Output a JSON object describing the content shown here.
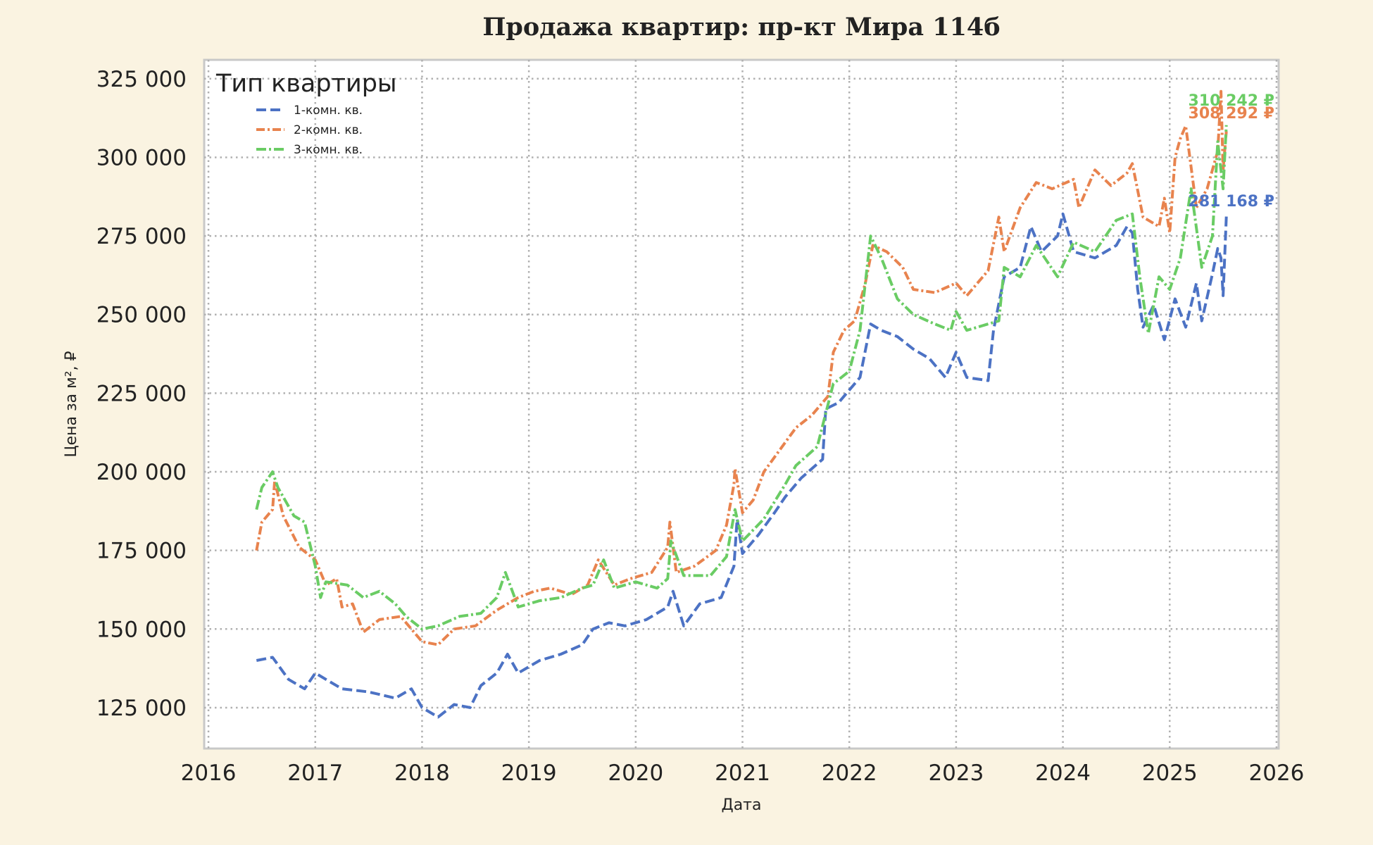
{
  "chart_data": {
    "type": "line",
    "title": "Продажа квартир: пр-кт Мира 114б",
    "xlabel": "Дата",
    "ylabel": "Цена за м², ₽",
    "xlim": [
      2015.96,
      2026.02
    ],
    "ylim": [
      112000,
      331000
    ],
    "x_ticks": [
      2016,
      2017,
      2018,
      2019,
      2020,
      2021,
      2022,
      2023,
      2024,
      2025,
      2026
    ],
    "x_tick_labels": [
      "2016",
      "2017",
      "2018",
      "2019",
      "2020",
      "2021",
      "2022",
      "2023",
      "2024",
      "2025",
      "2026"
    ],
    "y_ticks": [
      125000,
      150000,
      175000,
      200000,
      225000,
      250000,
      275000,
      300000,
      325000
    ],
    "y_tick_labels": [
      "125 000",
      "150 000",
      "175 000",
      "200 000",
      "225 000",
      "250 000",
      "275 000",
      "300 000",
      "325 000"
    ],
    "grid": true,
    "legend": {
      "title": "Тип квартиры",
      "position": "top-left"
    },
    "series": [
      {
        "name": "1-комн. кв.",
        "color": "#4c72c4",
        "dash": "dashed",
        "end_label": "281 168 ₽",
        "points": [
          [
            2016.45,
            140000
          ],
          [
            2016.6,
            141000
          ],
          [
            2016.75,
            134000
          ],
          [
            2016.9,
            131000
          ],
          [
            2017.0,
            136000
          ],
          [
            2017.1,
            134000
          ],
          [
            2017.25,
            131000
          ],
          [
            2017.5,
            130000
          ],
          [
            2017.75,
            128000
          ],
          [
            2017.9,
            131000
          ],
          [
            2018.0,
            125000
          ],
          [
            2018.15,
            122000
          ],
          [
            2018.3,
            126000
          ],
          [
            2018.45,
            125000
          ],
          [
            2018.55,
            132000
          ],
          [
            2018.7,
            136000
          ],
          [
            2018.8,
            142000
          ],
          [
            2018.9,
            136000
          ],
          [
            2019.1,
            140000
          ],
          [
            2019.3,
            142000
          ],
          [
            2019.5,
            145000
          ],
          [
            2019.6,
            150000
          ],
          [
            2019.75,
            152000
          ],
          [
            2019.9,
            151000
          ],
          [
            2020.1,
            153000
          ],
          [
            2020.3,
            157000
          ],
          [
            2020.35,
            162000
          ],
          [
            2020.45,
            151000
          ],
          [
            2020.6,
            158000
          ],
          [
            2020.8,
            160000
          ],
          [
            2020.92,
            170000
          ],
          [
            2020.95,
            185000
          ],
          [
            2021.0,
            174000
          ],
          [
            2021.15,
            180000
          ],
          [
            2021.3,
            187000
          ],
          [
            2021.4,
            192000
          ],
          [
            2021.55,
            198000
          ],
          [
            2021.75,
            204000
          ],
          [
            2021.78,
            220000
          ],
          [
            2021.9,
            222000
          ],
          [
            2022.0,
            226000
          ],
          [
            2022.1,
            230000
          ],
          [
            2022.2,
            247000
          ],
          [
            2022.3,
            245000
          ],
          [
            2022.45,
            243000
          ],
          [
            2022.6,
            239000
          ],
          [
            2022.75,
            236000
          ],
          [
            2022.9,
            230000
          ],
          [
            2023.0,
            238000
          ],
          [
            2023.1,
            230000
          ],
          [
            2023.3,
            229000
          ],
          [
            2023.35,
            245000
          ],
          [
            2023.45,
            262000
          ],
          [
            2023.6,
            265000
          ],
          [
            2023.7,
            278000
          ],
          [
            2023.8,
            270000
          ],
          [
            2023.95,
            275000
          ],
          [
            2024.0,
            282000
          ],
          [
            2024.1,
            270000
          ],
          [
            2024.3,
            268000
          ],
          [
            2024.5,
            272000
          ],
          [
            2024.6,
            278000
          ],
          [
            2024.65,
            276000
          ],
          [
            2024.7,
            258000
          ],
          [
            2024.75,
            246000
          ],
          [
            2024.85,
            253000
          ],
          [
            2024.95,
            242000
          ],
          [
            2025.05,
            255000
          ],
          [
            2025.15,
            246000
          ],
          [
            2025.25,
            260000
          ],
          [
            2025.3,
            248000
          ],
          [
            2025.4,
            263000
          ],
          [
            2025.45,
            271000
          ],
          [
            2025.48,
            268000
          ],
          [
            2025.5,
            256000
          ],
          [
            2025.53,
            281168
          ]
        ]
      },
      {
        "name": "2-комн. кв.",
        "color": "#e8834e",
        "dash": "dashdot-dotted",
        "end_label": "308 292 ₽",
        "points": [
          [
            2016.45,
            175000
          ],
          [
            2016.5,
            184000
          ],
          [
            2016.6,
            188000
          ],
          [
            2016.62,
            197000
          ],
          [
            2016.7,
            186000
          ],
          [
            2016.85,
            176000
          ],
          [
            2017.0,
            172000
          ],
          [
            2017.1,
            164000
          ],
          [
            2017.2,
            166000
          ],
          [
            2017.25,
            157000
          ],
          [
            2017.35,
            158000
          ],
          [
            2017.45,
            149000
          ],
          [
            2017.6,
            153000
          ],
          [
            2017.8,
            154000
          ],
          [
            2018.0,
            146000
          ],
          [
            2018.15,
            145000
          ],
          [
            2018.3,
            150000
          ],
          [
            2018.5,
            151000
          ],
          [
            2018.7,
            156000
          ],
          [
            2018.9,
            160000
          ],
          [
            2019.05,
            162000
          ],
          [
            2019.2,
            163000
          ],
          [
            2019.4,
            161000
          ],
          [
            2019.55,
            164000
          ],
          [
            2019.65,
            172000
          ],
          [
            2019.8,
            164000
          ],
          [
            2019.95,
            166000
          ],
          [
            2020.15,
            168000
          ],
          [
            2020.3,
            176000
          ],
          [
            2020.32,
            184000
          ],
          [
            2020.38,
            168000
          ],
          [
            2020.55,
            170000
          ],
          [
            2020.75,
            175000
          ],
          [
            2020.85,
            183000
          ],
          [
            2020.92,
            196000
          ],
          [
            2020.93,
            201000
          ],
          [
            2021.0,
            187000
          ],
          [
            2021.1,
            191000
          ],
          [
            2021.2,
            200000
          ],
          [
            2021.35,
            207000
          ],
          [
            2021.5,
            214000
          ],
          [
            2021.65,
            218000
          ],
          [
            2021.8,
            224000
          ],
          [
            2021.85,
            238000
          ],
          [
            2021.95,
            245000
          ],
          [
            2022.05,
            248000
          ],
          [
            2022.15,
            260000
          ],
          [
            2022.22,
            272000
          ],
          [
            2022.35,
            270000
          ],
          [
            2022.5,
            265000
          ],
          [
            2022.6,
            258000
          ],
          [
            2022.8,
            257000
          ],
          [
            2023.0,
            260000
          ],
          [
            2023.1,
            256000
          ],
          [
            2023.3,
            264000
          ],
          [
            2023.4,
            281000
          ],
          [
            2023.45,
            270000
          ],
          [
            2023.6,
            284000
          ],
          [
            2023.75,
            292000
          ],
          [
            2023.9,
            290000
          ],
          [
            2024.1,
            293000
          ],
          [
            2024.15,
            284000
          ],
          [
            2024.3,
            296000
          ],
          [
            2024.45,
            291000
          ],
          [
            2024.6,
            295000
          ],
          [
            2024.65,
            298000
          ],
          [
            2024.75,
            281000
          ],
          [
            2024.9,
            278000
          ],
          [
            2024.95,
            287000
          ],
          [
            2025.0,
            276000
          ],
          [
            2025.05,
            300000
          ],
          [
            2025.1,
            306000
          ],
          [
            2025.15,
            310000
          ],
          [
            2025.25,
            284000
          ],
          [
            2025.35,
            290000
          ],
          [
            2025.45,
            302000
          ],
          [
            2025.48,
            321000
          ],
          [
            2025.5,
            296000
          ],
          [
            2025.53,
            308292
          ]
        ]
      },
      {
        "name": "3-комн. кв.",
        "color": "#6acc64",
        "dash": "dashdot",
        "end_label": "310 242 ₽",
        "points": [
          [
            2016.45,
            188000
          ],
          [
            2016.5,
            195000
          ],
          [
            2016.6,
            200000
          ],
          [
            2016.65,
            195000
          ],
          [
            2016.8,
            186000
          ],
          [
            2016.9,
            184000
          ],
          [
            2017.0,
            170000
          ],
          [
            2017.05,
            160000
          ],
          [
            2017.1,
            165000
          ],
          [
            2017.3,
            164000
          ],
          [
            2017.45,
            160000
          ],
          [
            2017.6,
            162000
          ],
          [
            2017.75,
            158000
          ],
          [
            2017.85,
            154000
          ],
          [
            2018.0,
            150000
          ],
          [
            2018.15,
            151000
          ],
          [
            2018.35,
            154000
          ],
          [
            2018.55,
            155000
          ],
          [
            2018.7,
            160000
          ],
          [
            2018.78,
            168000
          ],
          [
            2018.9,
            157000
          ],
          [
            2019.1,
            159000
          ],
          [
            2019.3,
            160000
          ],
          [
            2019.5,
            163000
          ],
          [
            2019.6,
            164000
          ],
          [
            2019.7,
            172000
          ],
          [
            2019.8,
            163000
          ],
          [
            2020.0,
            165000
          ],
          [
            2020.2,
            163000
          ],
          [
            2020.3,
            166000
          ],
          [
            2020.33,
            178000
          ],
          [
            2020.45,
            167000
          ],
          [
            2020.7,
            167000
          ],
          [
            2020.85,
            173000
          ],
          [
            2020.93,
            188000
          ],
          [
            2021.0,
            178000
          ],
          [
            2021.2,
            185000
          ],
          [
            2021.4,
            196000
          ],
          [
            2021.5,
            202000
          ],
          [
            2021.7,
            208000
          ],
          [
            2021.85,
            228000
          ],
          [
            2022.0,
            232000
          ],
          [
            2022.1,
            245000
          ],
          [
            2022.2,
            275000
          ],
          [
            2022.3,
            268000
          ],
          [
            2022.45,
            255000
          ],
          [
            2022.6,
            250000
          ],
          [
            2022.8,
            247000
          ],
          [
            2022.95,
            245000
          ],
          [
            2023.0,
            251000
          ],
          [
            2023.1,
            245000
          ],
          [
            2023.3,
            247000
          ],
          [
            2023.4,
            248000
          ],
          [
            2023.45,
            265000
          ],
          [
            2023.6,
            262000
          ],
          [
            2023.75,
            272000
          ],
          [
            2023.95,
            262000
          ],
          [
            2024.1,
            273000
          ],
          [
            2024.3,
            270000
          ],
          [
            2024.5,
            280000
          ],
          [
            2024.65,
            282000
          ],
          [
            2024.72,
            262000
          ],
          [
            2024.8,
            244000
          ],
          [
            2024.9,
            262000
          ],
          [
            2025.0,
            258000
          ],
          [
            2025.1,
            268000
          ],
          [
            2025.2,
            290000
          ],
          [
            2025.3,
            265000
          ],
          [
            2025.4,
            275000
          ],
          [
            2025.45,
            305000
          ],
          [
            2025.5,
            290000
          ],
          [
            2025.53,
            310242
          ]
        ]
      }
    ]
  }
}
